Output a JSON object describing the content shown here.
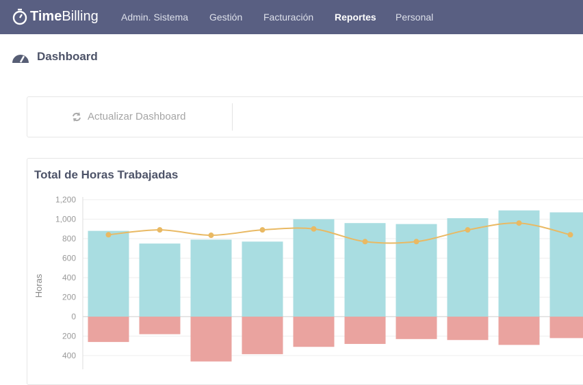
{
  "logo": {
    "bold": "Time",
    "light": "Billing"
  },
  "nav": {
    "items": [
      "Admin. Sistema",
      "Gestión",
      "Facturación",
      "Reportes",
      "Personal"
    ],
    "active": 3
  },
  "page_title": "Dashboard",
  "toolbar": {
    "button": "Actualizar Dashboard"
  },
  "chart_data": {
    "type": "bar",
    "title": "Total de Horas Trabajadas",
    "y_label": "Horas",
    "series": [
      {
        "color": "#a9dde1",
        "values": [
          880,
          750,
          790,
          770,
          1000,
          960,
          950,
          1010,
          1090,
          1070
        ]
      },
      {
        "color": "#eaa39f",
        "values": [
          -260,
          -180,
          -460,
          -385,
          -310,
          -280,
          -230,
          -240,
          -290,
          -220
        ]
      },
      {
        "type": "line",
        "color": "#e9b963",
        "values": [
          840,
          890,
          835,
          890,
          900,
          770,
          770,
          890,
          960,
          840
        ]
      }
    ],
    "ylim": [
      -540,
      1200
    ],
    "yticks": [
      {
        "value": 1200,
        "label": "1,200"
      },
      {
        "value": 1000,
        "label": "1,000"
      },
      800,
      600,
      400,
      200,
      0,
      {
        "value": -200,
        "label": "200"
      },
      {
        "value": -400,
        "label": "400"
      }
    ],
    "grid": true
  }
}
